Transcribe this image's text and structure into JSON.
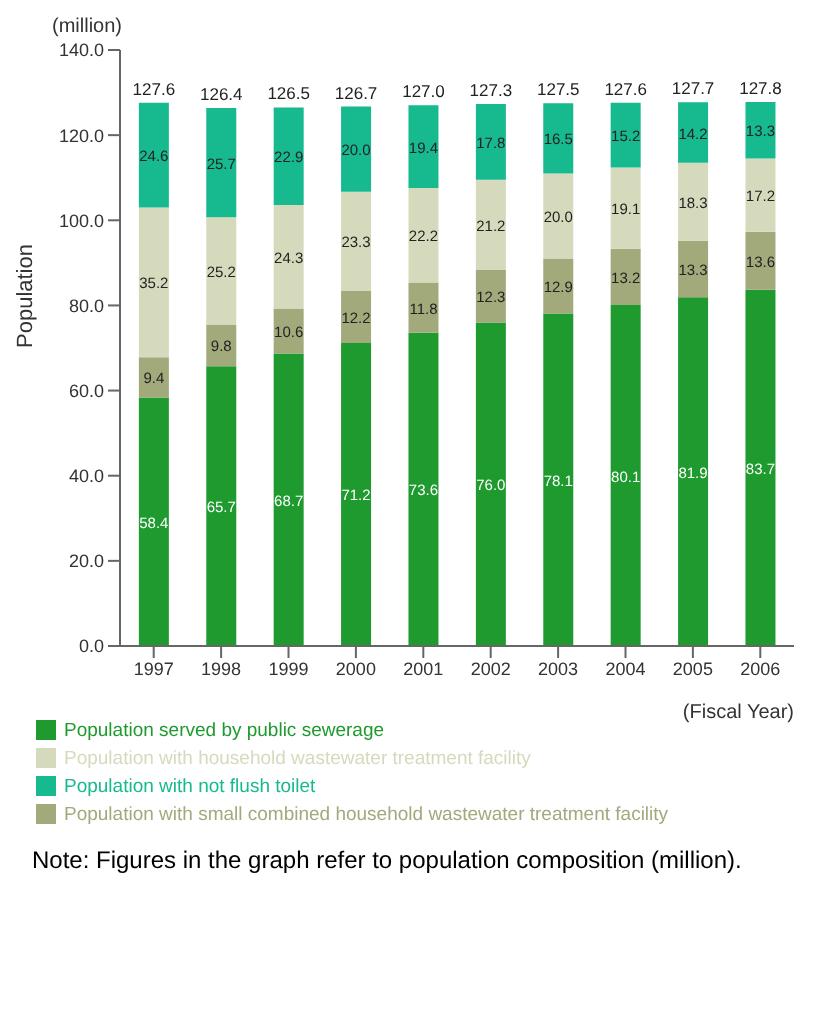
{
  "chart_data": {
    "type": "bar",
    "stacked": true,
    "ylabel": "Population",
    "xlabel": "(Fiscal Year)",
    "categories": [
      "1997",
      "1998",
      "1999",
      "2000",
      "2001",
      "2002",
      "2003",
      "2004",
      "2005",
      "2006"
    ],
    "series": [
      {
        "name": "Population served by public sewerage",
        "color": "#1e9a2e",
        "values": [
          58.4,
          65.7,
          68.7,
          71.2,
          73.6,
          76.0,
          78.1,
          80.1,
          81.9,
          83.7
        ],
        "value_labels": [
          "58.4",
          "65.7",
          "68.7",
          "71.2",
          "73.6",
          "76.0",
          "78.1",
          "80.1",
          "81.9",
          "83.7"
        ]
      },
      {
        "name": "Population with small combined household wastewater treatment facility",
        "color": "#a2aa7c",
        "values": [
          9.4,
          9.8,
          10.6,
          12.2,
          11.8,
          12.3,
          12.9,
          13.2,
          13.3,
          13.6
        ],
        "value_labels": [
          "9.4",
          "9.8",
          "10.6",
          "12.2",
          "11.8",
          "12.3",
          "12.9",
          "13.2",
          "13.3",
          "13.6"
        ]
      },
      {
        "name": "Population with household wastewater treatment facility",
        "color": "#d6dabd",
        "values": [
          35.2,
          25.2,
          24.3,
          23.3,
          22.2,
          21.2,
          20.0,
          19.1,
          18.3,
          17.2
        ],
        "value_labels": [
          "35.2",
          "25.2",
          "24.3",
          "23.3",
          "22.2",
          "21.2",
          "20.0",
          "19.1",
          "18.3",
          "17.2"
        ]
      },
      {
        "name": "Population with not flush toilet",
        "color": "#17b98f",
        "values": [
          24.6,
          25.7,
          22.9,
          20.0,
          19.4,
          17.8,
          16.5,
          15.2,
          14.2,
          13.3
        ],
        "value_labels": [
          "24.6",
          "25.7",
          "22.9",
          "20.0",
          "19.4",
          "17.8",
          "16.5",
          "15.2",
          "14.2",
          "13.3"
        ]
      }
    ],
    "totals": [
      "127.6",
      "126.4",
      "126.5",
      "126.7",
      "127.0",
      "127.3",
      "127.5",
      "127.6",
      "127.7",
      "127.8"
    ],
    "ylim": [
      0,
      140
    ],
    "yticks": [
      {
        "value": 0,
        "label": "0.0"
      },
      {
        "value": 20,
        "label": "20.0"
      },
      {
        "value": 40,
        "label": "40.0"
      },
      {
        "value": 60,
        "label": "60.0"
      },
      {
        "value": 80,
        "label": "80.0"
      },
      {
        "value": 100,
        "label": "100.0"
      },
      {
        "value": 120,
        "label": "120.0"
      },
      {
        "value": 140,
        "label": "140.0"
      }
    ],
    "legend": "bottom",
    "annotations": [
      "(million)",
      "Note: Figures in the graph refer to population composition (million)."
    ]
  }
}
